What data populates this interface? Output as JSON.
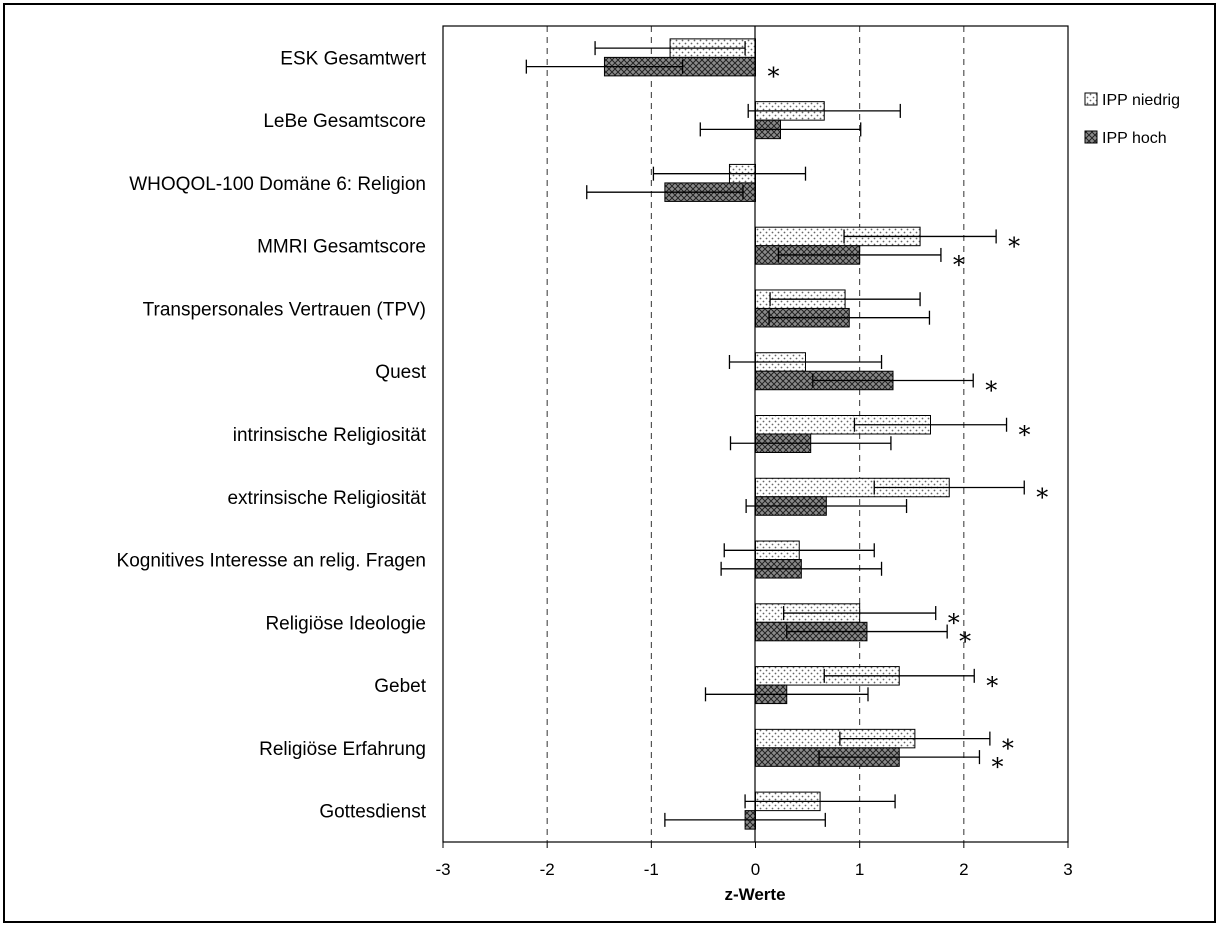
{
  "chart_data": {
    "type": "bar",
    "orientation": "horizontal",
    "xlabel": "z-Werte",
    "xlim": [
      -3,
      3
    ],
    "xticks": [
      "-3",
      "-2",
      "-1",
      "0",
      "1",
      "2",
      "3"
    ],
    "grid": "vertical dashed at integer ticks",
    "legend_position": "right",
    "categories": [
      "ESK Gesamtwert",
      "LeBe Gesamtscore",
      "WHOQOL-100 Domäne 6: Religion",
      "MMRI Gesamtscore",
      "Transpersonales Vertrauen (TPV)",
      "Quest",
      "intrinsische Religiosität",
      "extrinsische Religiosität",
      "Kognitives Interesse an relig. Fragen",
      "Religiöse Ideologie",
      "Gebet",
      "Religiöse Erfahrung",
      "Gottesdienst"
    ],
    "series": [
      {
        "name": "IPP niedrig",
        "pattern": "dotted-light",
        "values": [
          -0.82,
          0.66,
          -0.25,
          1.58,
          0.86,
          0.48,
          1.68,
          1.86,
          0.42,
          1.0,
          1.38,
          1.53,
          0.62
        ],
        "error": [
          0.72,
          0.73,
          0.73,
          0.73,
          0.72,
          0.73,
          0.73,
          0.72,
          0.72,
          0.73,
          0.72,
          0.72,
          0.72
        ],
        "significant": [
          false,
          false,
          false,
          true,
          false,
          false,
          true,
          true,
          false,
          true,
          true,
          true,
          false
        ]
      },
      {
        "name": "IPP hoch",
        "pattern": "crosshatch-dark",
        "values": [
          -1.45,
          0.24,
          -0.87,
          1.0,
          0.9,
          1.32,
          0.53,
          0.68,
          0.44,
          1.07,
          0.3,
          1.38,
          -0.1
        ],
        "error": [
          0.75,
          0.77,
          0.75,
          0.78,
          0.77,
          0.77,
          0.77,
          0.77,
          0.77,
          0.77,
          0.78,
          0.77,
          0.77
        ],
        "significant": [
          true,
          false,
          false,
          true,
          false,
          true,
          false,
          false,
          false,
          true,
          false,
          true,
          false
        ]
      }
    ]
  }
}
